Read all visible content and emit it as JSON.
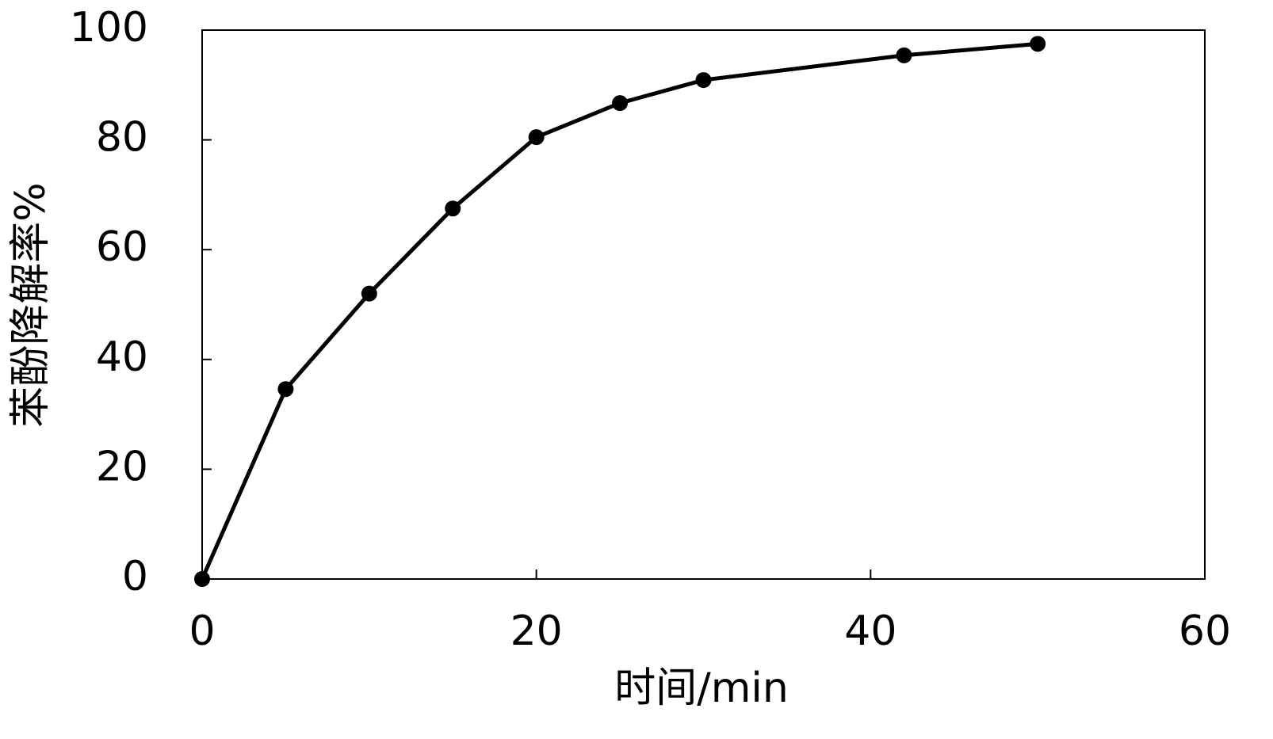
{
  "chart_data": {
    "type": "line",
    "xlabel": "时间/min",
    "ylabel": "苯酚降解率%",
    "series": [
      {
        "color": "#000000",
        "x": [
          0,
          5,
          10,
          15,
          20,
          25,
          30,
          42,
          50
        ],
        "values": [
          0,
          34.6,
          52,
          67.5,
          80.5,
          86.7,
          90.9,
          95.4,
          97.5
        ]
      }
    ],
    "xlim": [
      0,
      60
    ],
    "xticks": [
      0,
      20,
      40,
      60
    ],
    "ylim": [
      0,
      100
    ],
    "yticks": [
      0,
      20,
      40,
      60,
      80,
      100
    ],
    "grid": false
  }
}
